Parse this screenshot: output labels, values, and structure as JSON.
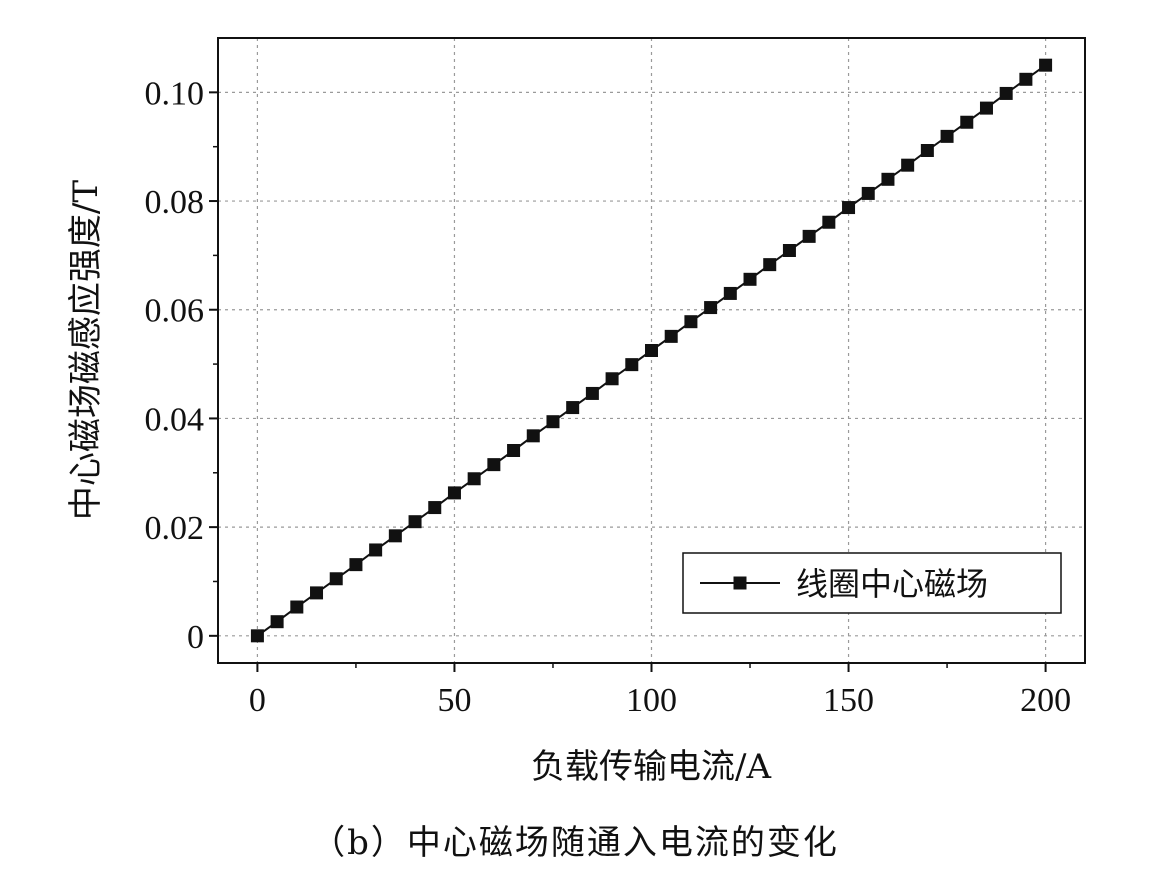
{
  "chart_data": {
    "type": "line",
    "xlabel": "负载传输电流/A",
    "ylabel": "中心磁场磁感应强度/T",
    "caption": "（b）中心磁场随通入电流的变化",
    "xlim": [
      -10,
      210
    ],
    "ylim": [
      -0.005,
      0.11
    ],
    "xticks": [
      0,
      50,
      100,
      150,
      200
    ],
    "xtick_labels": [
      "0",
      "50",
      "100",
      "150",
      "200"
    ],
    "yticks": [
      0,
      0.02,
      0.04,
      0.06,
      0.08,
      0.1
    ],
    "ytick_labels": [
      "0",
      "0.02",
      "0.04",
      "0.06",
      "0.08",
      "0.10"
    ],
    "grid": true,
    "legend_position": "bottom-right",
    "series": [
      {
        "name": "线圈中心磁场",
        "color": "#111111",
        "marker": "square",
        "x": [
          0,
          5,
          10,
          15,
          20,
          25,
          30,
          35,
          40,
          45,
          50,
          55,
          60,
          65,
          70,
          75,
          80,
          85,
          90,
          95,
          100,
          105,
          110,
          115,
          120,
          125,
          130,
          135,
          140,
          145,
          150,
          155,
          160,
          165,
          170,
          175,
          180,
          185,
          190,
          195,
          200
        ],
        "y": [
          0.0,
          0.0026,
          0.0053,
          0.0079,
          0.0105,
          0.0131,
          0.0158,
          0.0184,
          0.021,
          0.0236,
          0.0263,
          0.0289,
          0.0315,
          0.0341,
          0.0368,
          0.0394,
          0.042,
          0.0446,
          0.0473,
          0.0499,
          0.0525,
          0.0551,
          0.0578,
          0.0604,
          0.063,
          0.0656,
          0.0683,
          0.0709,
          0.0735,
          0.0761,
          0.0788,
          0.0814,
          0.084,
          0.0866,
          0.0893,
          0.0919,
          0.0945,
          0.0971,
          0.0998,
          0.1024,
          0.105
        ]
      }
    ]
  }
}
